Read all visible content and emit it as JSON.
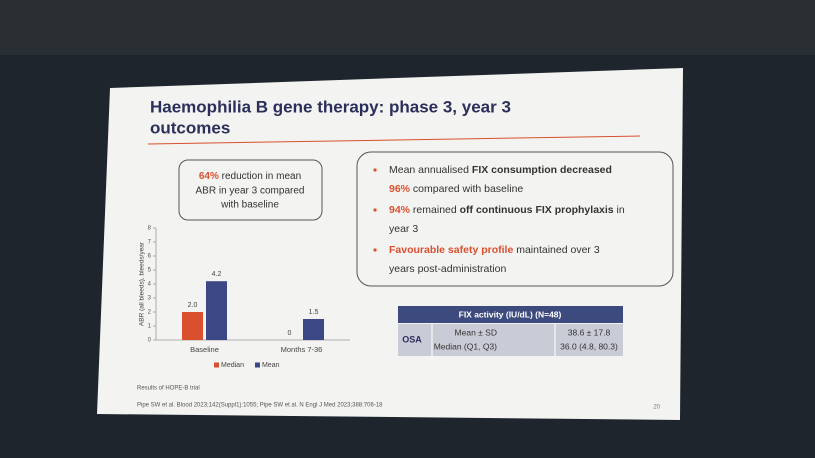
{
  "slide": {
    "title_lines": [
      "Haemophilia B gene therapy: phase 3, year 3",
      "outcomes"
    ],
    "callout": {
      "highlight": "64%",
      "lines": [
        " reduction in mean",
        "ABR in year 3 compared",
        "with baseline"
      ]
    },
    "bullets": [
      [
        [
          {
            "text": "Mean annualised ",
            "style": "normal"
          },
          {
            "text": "FIX consumption decreased",
            "style": "bold"
          }
        ],
        [
          {
            "text": "96%",
            "style": "accent"
          },
          {
            "text": " compared with baseline",
            "style": "normal"
          }
        ]
      ],
      [
        [
          {
            "text": "94%",
            "style": "accent"
          },
          {
            "text": " remained ",
            "style": "normal"
          },
          {
            "text": "off continuous FIX prophylaxis",
            "style": "bold"
          },
          {
            "text": " in",
            "style": "normal"
          }
        ],
        [
          {
            "text": "year 3",
            "style": "normal"
          }
        ]
      ],
      [
        [
          {
            "text": "Favourable safety profile",
            "style": "accent"
          },
          {
            "text": " maintained over 3",
            "style": "normal"
          }
        ],
        [
          {
            "text": "years post-administration",
            "style": "normal"
          }
        ]
      ]
    ],
    "table": {
      "header": "FIX activity (IU/dL) (N=48)",
      "row_label": "OSA",
      "stats": [
        "Mean ± SD",
        "Median (Q1, Q3)"
      ],
      "values": [
        "38.6 ± 17.8",
        "36.0 (4.8, 80.3)"
      ]
    },
    "footnotes": [
      "Results of HOPE-B trial",
      "Pipe SW et al. Blood 2023;142(Suppl1):1055; Pipe SW et al. N Engl J Med 2023;388:706-18"
    ],
    "page_number": "20"
  },
  "chart_data": {
    "type": "bar",
    "y_label": "ABR (all bleeds), bleeds/year",
    "categories": [
      "Baseline",
      "Months 7-36"
    ],
    "series": [
      {
        "name": "Median",
        "color": "#d9502f",
        "values": [
          2.0,
          0
        ],
        "value_labels": [
          "2.0",
          "0"
        ]
      },
      {
        "name": "Mean",
        "color": "#3c4785",
        "values": [
          4.2,
          1.5
        ],
        "value_labels": [
          "4.2",
          "1.5"
        ]
      }
    ],
    "ylim": [
      0,
      8
    ],
    "yticks": [
      0,
      1,
      2,
      3,
      4,
      5,
      6,
      7,
      8
    ],
    "legend": "bottom"
  }
}
